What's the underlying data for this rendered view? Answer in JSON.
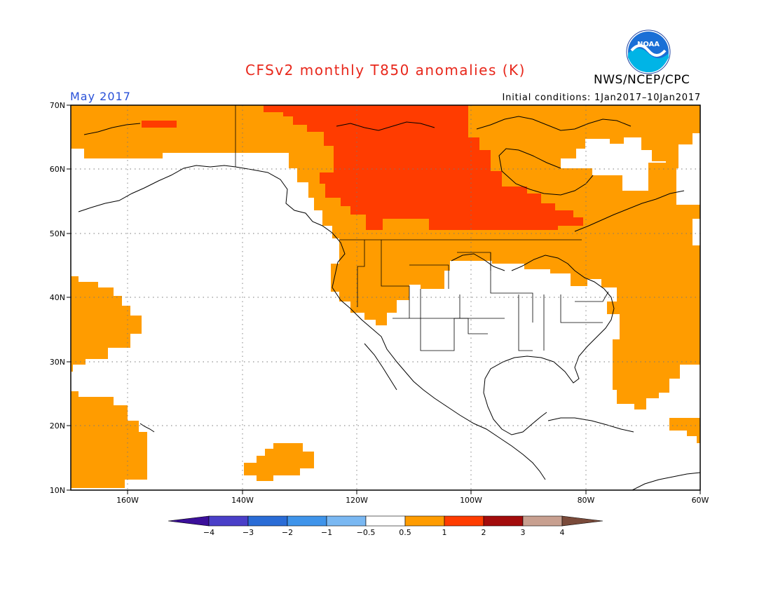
{
  "title": "CFSv2 monthly T850 anomalies (K)",
  "month": "May 2017",
  "org": "NWS/NCEP/CPC",
  "initial_conditions": "Initial conditions: 1Jan2017–10Jan2017",
  "logo_text": "NOAA",
  "map": {
    "lon_range": [
      -171,
      -60
    ],
    "lat_range": [
      10,
      70
    ],
    "lat_ticks": [
      "10N",
      "20N",
      "30N",
      "40N",
      "50N",
      "60N",
      "70N"
    ],
    "lon_ticks": [
      "160W",
      "140W",
      "120W",
      "100W",
      "80W",
      "60W"
    ],
    "grid": "dotted"
  },
  "colorbar": {
    "labels": [
      "−4",
      "−3",
      "−2",
      "−1",
      "−0.5",
      "0.5",
      "1",
      "2",
      "3",
      "4"
    ],
    "colors": [
      "#3b0f9a",
      "#4a3fc8",
      "#2a6cd6",
      "#3f94ea",
      "#7ab8f2",
      "#ffffff",
      "#ff9c00",
      "#ff3c00",
      "#a30c0c",
      "#c8a090",
      "#7a4a3a"
    ]
  },
  "anomaly_regions": [
    {
      "level": "0.5 to 1",
      "color": "#ff9c00",
      "area": "Alaska / Bering"
    },
    {
      "level": "0.5 to 1",
      "color": "#ff9c00",
      "area": "Canada, northern US, northeast US, western Atlantic"
    },
    {
      "level": "1 to 2",
      "color": "#ff3c00",
      "area": "Central Canada"
    },
    {
      "level": "0.5 to 1",
      "color": "#ff9c00",
      "area": "Eastern Pacific near 35N 165W"
    },
    {
      "level": "0.5 to 1",
      "color": "#ff9c00",
      "area": "Pacific near Hawaii"
    },
    {
      "level": "0.5 to 1",
      "color": "#ff9c00",
      "area": "Eastern Pacific near 15N 133W"
    },
    {
      "level": "0.5 to 1",
      "color": "#ff9c00",
      "area": "Caribbean near 20N 62W"
    }
  ]
}
